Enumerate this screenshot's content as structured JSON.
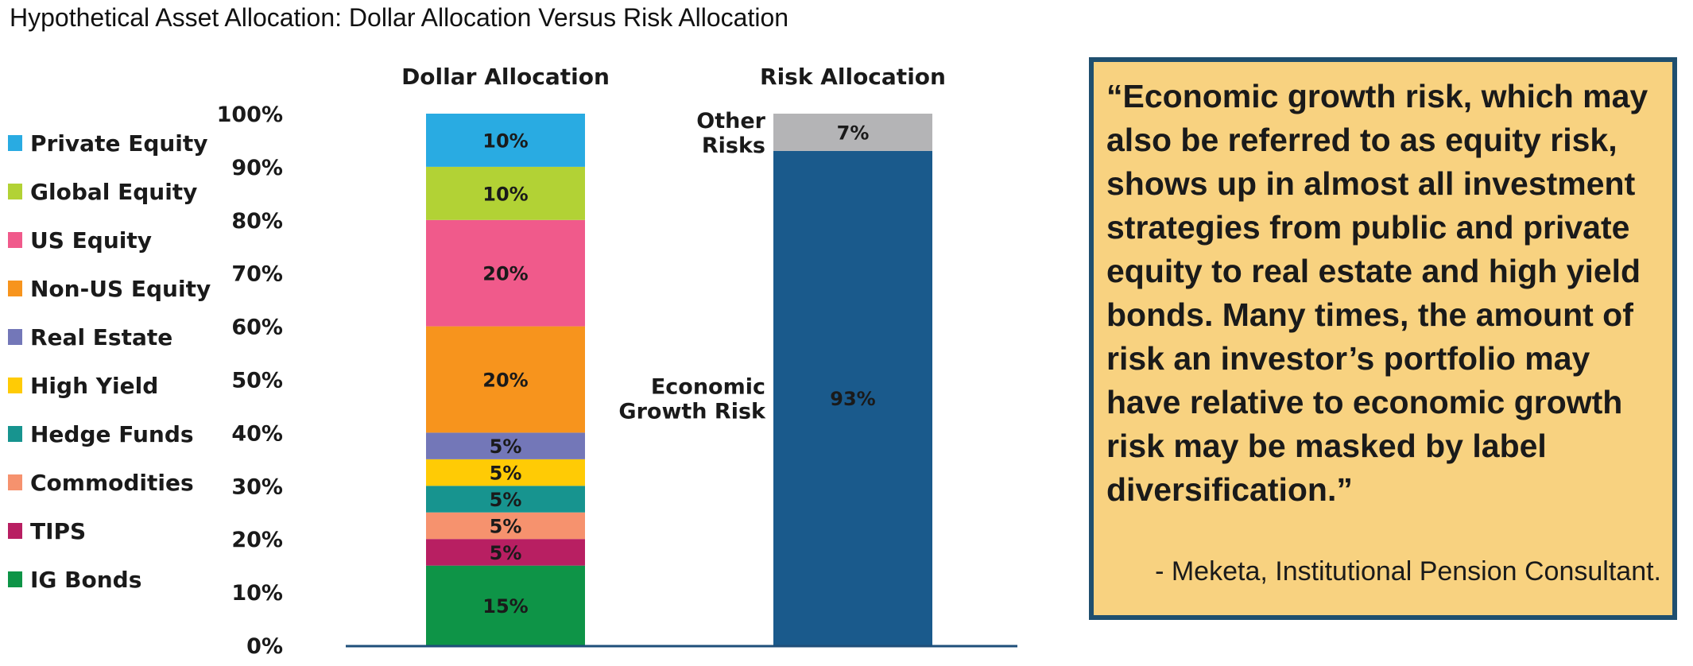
{
  "page_title": "Hypothetical Asset Allocation: Dollar Allocation Versus Risk Allocation",
  "chart_data": {
    "type": "bar",
    "stacked": true,
    "title": "Hypothetical Asset Allocation: Dollar Allocation Versus Risk Allocation",
    "categories": [
      "Dollar Allocation",
      "Risk Allocation"
    ],
    "ylim": [
      0,
      100
    ],
    "y_ticks": [
      "0%",
      "10%",
      "20%",
      "30%",
      "40%",
      "50%",
      "60%",
      "70%",
      "80%",
      "90%",
      "100%"
    ],
    "legend": {
      "placement": "left",
      "entries": [
        {
          "name": "Private Equity",
          "color": "#29abe2"
        },
        {
          "name": "Global Equity",
          "color": "#b2d235"
        },
        {
          "name": "US Equity",
          "color": "#f05a8b"
        },
        {
          "name": "Non-US Equity",
          "color": "#f7941d"
        },
        {
          "name": "Real Estate",
          "color": "#7377b8"
        },
        {
          "name": "High Yield",
          "color": "#ffcb05"
        },
        {
          "name": "Hedge Funds",
          "color": "#17948f"
        },
        {
          "name": "Commodities",
          "color": "#f6926e"
        },
        {
          "name": "TIPS",
          "color": "#b81f62"
        },
        {
          "name": "IG Bonds",
          "color": "#0e9447"
        }
      ]
    },
    "bars": [
      {
        "name": "Dollar Allocation",
        "segments": [
          {
            "name": "IG Bonds",
            "value": 15,
            "label": "15%",
            "color": "#0e9447"
          },
          {
            "name": "TIPS",
            "value": 5,
            "label": "5%",
            "color": "#b81f62"
          },
          {
            "name": "Commodities",
            "value": 5,
            "label": "5%",
            "color": "#f6926e"
          },
          {
            "name": "Hedge Funds",
            "value": 5,
            "label": "5%",
            "color": "#17948f"
          },
          {
            "name": "High Yield",
            "value": 5,
            "label": "5%",
            "color": "#ffcb05"
          },
          {
            "name": "Real Estate",
            "value": 5,
            "label": "5%",
            "color": "#7377b8"
          },
          {
            "name": "Non-US Equity",
            "value": 20,
            "label": "20%",
            "color": "#f7941d"
          },
          {
            "name": "US Equity",
            "value": 20,
            "label": "20%",
            "color": "#f05a8b"
          },
          {
            "name": "Global Equity",
            "value": 10,
            "label": "10%",
            "color": "#b2d235"
          },
          {
            "name": "Private Equity",
            "value": 10,
            "label": "10%",
            "color": "#29abe2"
          }
        ]
      },
      {
        "name": "Risk Allocation",
        "segments": [
          {
            "name": "Economic Growth Risk",
            "value": 93,
            "label": "93%",
            "color": "#1a5a8c",
            "side_label": [
              "Economic",
              "Growth Risk"
            ]
          },
          {
            "name": "Other Risks",
            "value": 7,
            "label": "7%",
            "color": "#b4b4b6",
            "side_label": [
              "Other",
              "Risks"
            ]
          }
        ]
      }
    ]
  },
  "quote": {
    "text": "“Economic growth risk, which may also be referred to as equity risk, shows up in almost all investment strategies from public and private equity to real estate and high yield bonds. Many times, the amount of risk an investor’s portfolio may have relative to economic growth risk may be masked by label diversification.”",
    "attribution": "- Meketa, Institutional Pension Consultant."
  },
  "colors": {
    "axis_line": "#1f4f7a",
    "quote_bg": "#f8d280",
    "quote_border": "#1f4f6f"
  }
}
